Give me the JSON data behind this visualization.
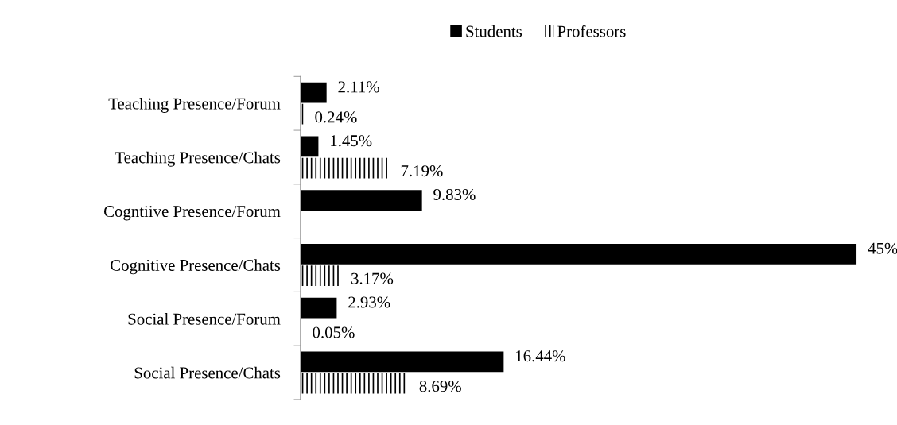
{
  "chart_data": {
    "type": "bar",
    "orientation": "horizontal",
    "categories": [
      "Teaching Presence/Forum",
      "Teaching Presence/Chats",
      "Cogntiive Presence/Forum",
      "Cognitive Presence/Chats",
      "Social Presence/Forum",
      "Social Presence/Chats"
    ],
    "series": [
      {
        "name": "Students",
        "color": "#000000",
        "values": [
          2.11,
          1.45,
          9.83,
          45,
          2.93,
          16.44
        ],
        "value_labels": [
          "2.11%",
          "1.45%",
          "9.83%",
          "45%",
          "2.93%",
          "16.44%"
        ]
      },
      {
        "name": "Professors",
        "color": "#000000",
        "values": [
          0.24,
          7.19,
          null,
          3.17,
          0.05,
          8.69
        ],
        "value_labels": [
          "0.24%",
          "7.19%",
          null,
          "3.17%",
          "0.05%",
          "8.69%"
        ]
      }
    ],
    "legend": "top",
    "grid": false,
    "tick_labels": "y"
  }
}
